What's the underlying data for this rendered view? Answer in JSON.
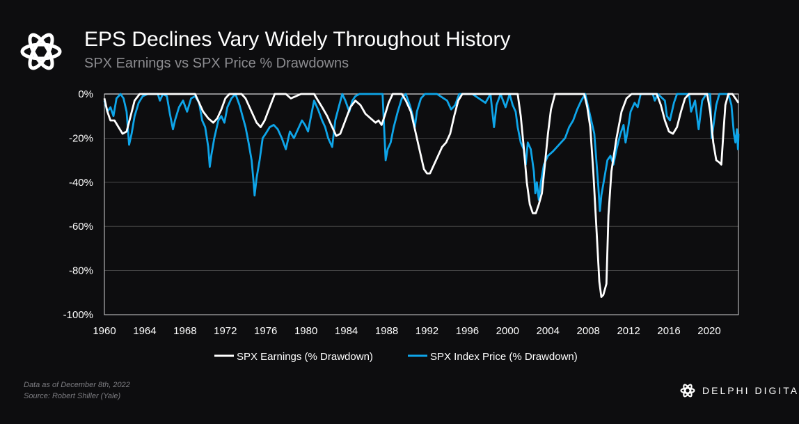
{
  "header": {
    "title": "EPS Declines Vary Widely Throughout History",
    "subtitle": "SPX Earnings vs SPX Price % Drawdowns"
  },
  "footer": {
    "line1": "Data as of December  8th, 2022",
    "line2": "Source: Robert Shiller (Yale)"
  },
  "brand": {
    "name": "DELPHI DIGITAL"
  },
  "colors": {
    "background": "#0d0d0f",
    "earnings": "#ffffff",
    "price": "#0ea5e9",
    "grid": "#555555"
  },
  "chart_data": {
    "type": "line",
    "title": "EPS Declines Vary Widely Throughout History",
    "subtitle": "SPX Earnings vs SPX Price % Drawdowns",
    "xlabel": "",
    "ylabel": "",
    "xlim": [
      1960,
      2022.9
    ],
    "ylim": [
      -100,
      0
    ],
    "x_ticks": [
      "1960",
      "1964",
      "1968",
      "1972",
      "1976",
      "1980",
      "1984",
      "1988",
      "1992",
      "1996",
      "2000",
      "2004",
      "2008",
      "2012",
      "2016",
      "2020"
    ],
    "y_ticks": [
      "0%",
      "-20%",
      "-40%",
      "-60%",
      "-80%",
      "-100%"
    ],
    "grid": true,
    "legend_position": "bottom",
    "series": [
      {
        "name": "SPX Earnings (% Drawdown)",
        "color": "#ffffff",
        "points": [
          [
            1960,
            -2
          ],
          [
            1960.3,
            -8
          ],
          [
            1960.6,
            -12
          ],
          [
            1961,
            -12
          ],
          [
            1961.4,
            -15
          ],
          [
            1961.8,
            -18
          ],
          [
            1962.2,
            -17
          ],
          [
            1962.6,
            -10
          ],
          [
            1963,
            -3
          ],
          [
            1963.5,
            0
          ],
          [
            1969,
            0
          ],
          [
            1969.4,
            -4
          ],
          [
            1969.8,
            -8
          ],
          [
            1970.3,
            -11
          ],
          [
            1970.8,
            -13
          ],
          [
            1971.2,
            -11
          ],
          [
            1971.6,
            -7
          ],
          [
            1972,
            -2
          ],
          [
            1972.4,
            0
          ],
          [
            1973.6,
            0
          ],
          [
            1974,
            -2
          ],
          [
            1974.6,
            -8
          ],
          [
            1975.1,
            -13
          ],
          [
            1975.5,
            -15
          ],
          [
            1975.9,
            -12
          ],
          [
            1976.4,
            -6
          ],
          [
            1976.9,
            0
          ],
          [
            1978,
            0
          ],
          [
            1978.5,
            -2
          ],
          [
            1979,
            -1
          ],
          [
            1979.5,
            0
          ],
          [
            1980.8,
            0
          ],
          [
            1981.2,
            -3
          ],
          [
            1981.6,
            -6
          ],
          [
            1982.1,
            -10
          ],
          [
            1982.6,
            -15
          ],
          [
            1983,
            -19
          ],
          [
            1983.4,
            -18
          ],
          [
            1983.9,
            -12
          ],
          [
            1984.4,
            -6
          ],
          [
            1984.9,
            -3
          ],
          [
            1985.4,
            -5
          ],
          [
            1985.9,
            -9
          ],
          [
            1986.4,
            -11
          ],
          [
            1986.9,
            -13
          ],
          [
            1987.2,
            -12
          ],
          [
            1987.5,
            -14
          ],
          [
            1987.8,
            -10
          ],
          [
            1988.2,
            -4
          ],
          [
            1988.6,
            0
          ],
          [
            1989.5,
            0
          ],
          [
            1989.9,
            -3
          ],
          [
            1990.4,
            -8
          ],
          [
            1990.8,
            -16
          ],
          [
            1991.3,
            -26
          ],
          [
            1991.7,
            -34
          ],
          [
            1992,
            -36
          ],
          [
            1992.3,
            -36
          ],
          [
            1992.7,
            -32
          ],
          [
            1993.1,
            -28
          ],
          [
            1993.5,
            -24
          ],
          [
            1993.9,
            -22
          ],
          [
            1994.3,
            -18
          ],
          [
            1994.7,
            -10
          ],
          [
            1995.1,
            -3
          ],
          [
            1995.5,
            0
          ],
          [
            2001,
            0
          ],
          [
            2001.3,
            -10
          ],
          [
            2001.6,
            -24
          ],
          [
            2001.9,
            -40
          ],
          [
            2002.2,
            -50
          ],
          [
            2002.5,
            -54
          ],
          [
            2002.8,
            -54
          ],
          [
            2003.1,
            -50
          ],
          [
            2003.4,
            -45
          ],
          [
            2003.7,
            -32
          ],
          [
            2004,
            -18
          ],
          [
            2004.3,
            -7
          ],
          [
            2004.7,
            0
          ],
          [
            2007.6,
            0
          ],
          [
            2007.9,
            -6
          ],
          [
            2008.2,
            -15
          ],
          [
            2008.5,
            -35
          ],
          [
            2008.8,
            -60
          ],
          [
            2009.1,
            -85
          ],
          [
            2009.3,
            -92
          ],
          [
            2009.5,
            -91
          ],
          [
            2009.8,
            -86
          ],
          [
            2010,
            -55
          ],
          [
            2010.3,
            -35
          ],
          [
            2010.8,
            -20
          ],
          [
            2011.3,
            -8
          ],
          [
            2011.8,
            -2
          ],
          [
            2012.3,
            0
          ],
          [
            2014.8,
            0
          ],
          [
            2015.2,
            -5
          ],
          [
            2015.6,
            -12
          ],
          [
            2016,
            -17
          ],
          [
            2016.4,
            -18
          ],
          [
            2016.8,
            -15
          ],
          [
            2017.2,
            -8
          ],
          [
            2017.6,
            -2
          ],
          [
            2018,
            0
          ],
          [
            2019.8,
            0
          ],
          [
            2020.1,
            -8
          ],
          [
            2020.4,
            -22
          ],
          [
            2020.7,
            -30
          ],
          [
            2021.0,
            -31
          ],
          [
            2021.2,
            -32
          ],
          [
            2021.4,
            -18
          ],
          [
            2021.6,
            -5
          ],
          [
            2021.9,
            0
          ],
          [
            2022.3,
            0
          ],
          [
            2022.6,
            -2
          ],
          [
            2022.9,
            -4
          ]
        ]
      },
      {
        "name": "SPX Index Price (% Drawdown)",
        "color": "#0ea5e9",
        "points": [
          [
            1960,
            -3
          ],
          [
            1960.3,
            -8
          ],
          [
            1960.6,
            -6
          ],
          [
            1960.9,
            -10
          ],
          [
            1961.2,
            -2
          ],
          [
            1961.6,
            0
          ],
          [
            1961.9,
            -2
          ],
          [
            1962.2,
            -8
          ],
          [
            1962.45,
            -23
          ],
          [
            1962.7,
            -18
          ],
          [
            1963,
            -10
          ],
          [
            1963.4,
            -4
          ],
          [
            1963.8,
            -1
          ],
          [
            1964.3,
            0
          ],
          [
            1965.3,
            0
          ],
          [
            1965.5,
            -3
          ],
          [
            1965.8,
            0
          ],
          [
            1966.2,
            -1
          ],
          [
            1966.5,
            -9
          ],
          [
            1966.8,
            -16
          ],
          [
            1967,
            -12
          ],
          [
            1967.4,
            -6
          ],
          [
            1967.8,
            -3
          ],
          [
            1968.2,
            -8
          ],
          [
            1968.6,
            -2
          ],
          [
            1969,
            -1
          ],
          [
            1969.4,
            -4
          ],
          [
            1969.7,
            -12
          ],
          [
            1970,
            -15
          ],
          [
            1970.3,
            -24
          ],
          [
            1970.45,
            -33
          ],
          [
            1970.6,
            -28
          ],
          [
            1970.9,
            -20
          ],
          [
            1971.3,
            -12
          ],
          [
            1971.6,
            -10
          ],
          [
            1971.9,
            -13
          ],
          [
            1972.2,
            -6
          ],
          [
            1972.6,
            -2
          ],
          [
            1973,
            0
          ],
          [
            1973.4,
            -5
          ],
          [
            1973.7,
            -10
          ],
          [
            1974,
            -15
          ],
          [
            1974.3,
            -22
          ],
          [
            1974.6,
            -30
          ],
          [
            1974.8,
            -40
          ],
          [
            1974.9,
            -46
          ],
          [
            1975.1,
            -38
          ],
          [
            1975.4,
            -30
          ],
          [
            1975.7,
            -20
          ],
          [
            1976,
            -18
          ],
          [
            1976.4,
            -15
          ],
          [
            1976.8,
            -14
          ],
          [
            1977.2,
            -16
          ],
          [
            1977.6,
            -20
          ],
          [
            1978,
            -25
          ],
          [
            1978.4,
            -17
          ],
          [
            1978.8,
            -20
          ],
          [
            1979.2,
            -16
          ],
          [
            1979.6,
            -12
          ],
          [
            1979.9,
            -14
          ],
          [
            1980.2,
            -17
          ],
          [
            1980.5,
            -10
          ],
          [
            1980.8,
            -3
          ],
          [
            1981.2,
            -7
          ],
          [
            1981.6,
            -12
          ],
          [
            1981.9,
            -15
          ],
          [
            1982.2,
            -20
          ],
          [
            1982.6,
            -24
          ],
          [
            1982.9,
            -12
          ],
          [
            1983.3,
            -5
          ],
          [
            1983.6,
            0
          ],
          [
            1983.9,
            -3
          ],
          [
            1984.3,
            -8
          ],
          [
            1984.6,
            -3
          ],
          [
            1984.9,
            -1
          ],
          [
            1985.3,
            0
          ],
          [
            1987,
            0
          ],
          [
            1987.6,
            0
          ],
          [
            1987.8,
            -20
          ],
          [
            1987.9,
            -30
          ],
          [
            1988.1,
            -25
          ],
          [
            1988.4,
            -22
          ],
          [
            1988.7,
            -15
          ],
          [
            1989.1,
            -8
          ],
          [
            1989.5,
            -2
          ],
          [
            1989.9,
            0
          ],
          [
            1990.3,
            -5
          ],
          [
            1990.6,
            -10
          ],
          [
            1990.8,
            -15
          ],
          [
            1991,
            -8
          ],
          [
            1991.4,
            -2
          ],
          [
            1991.8,
            0
          ],
          [
            1993,
            0
          ],
          [
            1994,
            -3
          ],
          [
            1994.4,
            -7
          ],
          [
            1994.8,
            -5
          ],
          [
            1995.2,
            0
          ],
          [
            1996.5,
            0
          ],
          [
            1997.8,
            -4
          ],
          [
            1998.3,
            0
          ],
          [
            1998.65,
            -15
          ],
          [
            1998.9,
            -5
          ],
          [
            1999.3,
            0
          ],
          [
            1999.8,
            -6
          ],
          [
            2000.2,
            0
          ],
          [
            2000.5,
            -5
          ],
          [
            2000.8,
            -8
          ],
          [
            2001,
            -15
          ],
          [
            2001.3,
            -22
          ],
          [
            2001.6,
            -25
          ],
          [
            2001.8,
            -32
          ],
          [
            2002,
            -22
          ],
          [
            2002.3,
            -25
          ],
          [
            2002.6,
            -35
          ],
          [
            2002.75,
            -45
          ],
          [
            2002.9,
            -40
          ],
          [
            2003.1,
            -48
          ],
          [
            2003.3,
            -40
          ],
          [
            2003.6,
            -32
          ],
          [
            2004,
            -28
          ],
          [
            2004.5,
            -26
          ],
          [
            2004.9,
            -24
          ],
          [
            2005.3,
            -22
          ],
          [
            2005.7,
            -20
          ],
          [
            2006.1,
            -15
          ],
          [
            2006.5,
            -12
          ],
          [
            2006.9,
            -7
          ],
          [
            2007.3,
            -3
          ],
          [
            2007.7,
            0
          ],
          [
            2008,
            -6
          ],
          [
            2008.3,
            -12
          ],
          [
            2008.6,
            -18
          ],
          [
            2008.8,
            -30
          ],
          [
            2009,
            -42
          ],
          [
            2009.15,
            -53
          ],
          [
            2009.3,
            -46
          ],
          [
            2009.6,
            -38
          ],
          [
            2009.9,
            -30
          ],
          [
            2010.2,
            -28
          ],
          [
            2010.5,
            -32
          ],
          [
            2010.8,
            -25
          ],
          [
            2011.2,
            -18
          ],
          [
            2011.5,
            -14
          ],
          [
            2011.7,
            -22
          ],
          [
            2011.9,
            -17
          ],
          [
            2012.2,
            -8
          ],
          [
            2012.6,
            -4
          ],
          [
            2012.9,
            -6
          ],
          [
            2013.2,
            0
          ],
          [
            2014.4,
            0
          ],
          [
            2014.6,
            -3
          ],
          [
            2014.9,
            0
          ],
          [
            2015.6,
            -3
          ],
          [
            2015.8,
            -10
          ],
          [
            2016.1,
            -12
          ],
          [
            2016.5,
            -4
          ],
          [
            2016.8,
            0
          ],
          [
            2018,
            0
          ],
          [
            2018.2,
            -8
          ],
          [
            2018.6,
            -3
          ],
          [
            2018.95,
            -16
          ],
          [
            2019.3,
            -3
          ],
          [
            2019.7,
            0
          ],
          [
            2020.1,
            0
          ],
          [
            2020.25,
            -20
          ],
          [
            2020.4,
            -15
          ],
          [
            2020.7,
            -5
          ],
          [
            2021,
            0
          ],
          [
            2021.9,
            0
          ],
          [
            2022.2,
            -5
          ],
          [
            2022.45,
            -18
          ],
          [
            2022.6,
            -22
          ],
          [
            2022.75,
            -16
          ],
          [
            2022.85,
            -25
          ],
          [
            2022.9,
            -18
          ]
        ]
      }
    ]
  }
}
